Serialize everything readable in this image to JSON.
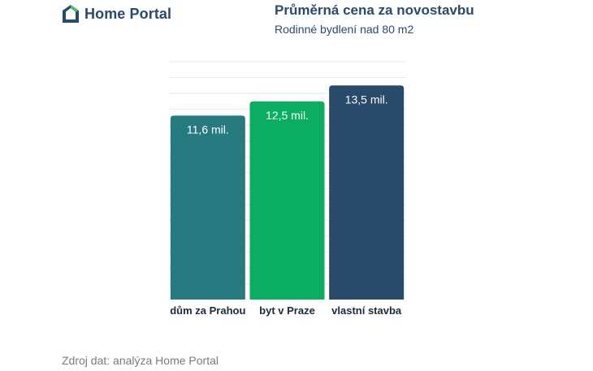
{
  "header": {
    "logo_text": "Home Portal",
    "title": "Průměrná cena za novostavbu",
    "subtitle": "Rodinné bydlení nad 80 m2"
  },
  "footer": {
    "source": "Zdroj dat: analýza Home Portal"
  },
  "colors": {
    "heading": "#2a4a6b",
    "bar_teal": "#267a80",
    "bar_green": "#0aad62",
    "bar_navy": "#2a4a6b",
    "logo_green": "#4fbf5a",
    "source_gray": "#7a7a7a"
  },
  "chart_data": {
    "type": "bar",
    "categories": [
      "dům za Prahou",
      "byt v Praze",
      "vlastní stavba"
    ],
    "values": [
      11.6,
      12.5,
      13.5
    ],
    "value_labels": [
      "11,6 mil.",
      "12,5 mil.",
      "13,5 mil."
    ],
    "bar_colors": [
      "#267a80",
      "#0aad62",
      "#2a4a6b"
    ],
    "ylim": [
      0,
      15
    ],
    "grid": true,
    "legend": "none"
  }
}
